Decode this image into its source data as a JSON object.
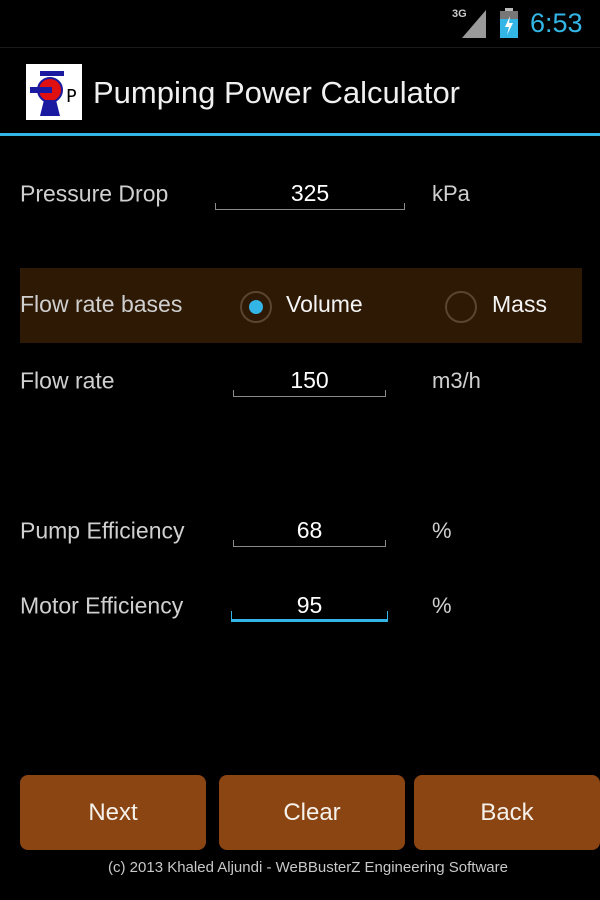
{
  "status_bar": {
    "network": "3G",
    "time": "6:53",
    "accent": "#33b5e5"
  },
  "action_bar": {
    "title": "Pumping Power Calculator",
    "icon": "pump-logo-icon"
  },
  "form": {
    "pressure_drop": {
      "label": "Pressure Drop",
      "value": "325",
      "unit": "kPa"
    },
    "flow_basis": {
      "label": "Flow rate bases",
      "options": [
        "Volume",
        "Mass"
      ],
      "selected": "Volume"
    },
    "flow_rate": {
      "label": "Flow rate",
      "value": "150",
      "unit": "m3/h"
    },
    "pump_efficiency": {
      "label": "Pump Efficiency",
      "value": "68",
      "unit": "%"
    },
    "motor_efficiency": {
      "label": "Motor Efficiency",
      "value": "95",
      "unit": "%"
    }
  },
  "buttons": {
    "next": "Next",
    "clear": "Clear",
    "back": "Back",
    "color": "#8b4512"
  },
  "footer": "(c) 2013 Khaled Aljundi - WeBBusterZ Engineering Software"
}
